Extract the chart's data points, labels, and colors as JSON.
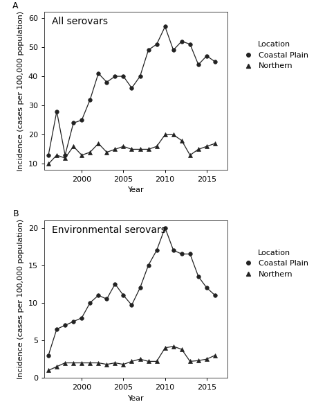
{
  "years": [
    1996,
    1997,
    1998,
    1999,
    2000,
    2001,
    2002,
    2003,
    2004,
    2005,
    2006,
    2007,
    2008,
    2009,
    2010,
    2011,
    2012,
    2013,
    2014,
    2015,
    2016
  ],
  "panel_a": {
    "title": "All serovars",
    "label": "A",
    "coastal_plain": [
      13,
      28,
      13,
      24,
      25,
      32,
      41,
      38,
      40,
      40,
      36,
      40,
      49,
      51,
      57,
      49,
      52,
      51,
      44,
      47,
      45
    ],
    "northern": [
      10,
      13,
      12,
      16,
      13,
      14,
      17,
      14,
      15,
      16,
      15,
      15,
      15,
      16,
      20,
      20,
      18,
      13,
      15,
      16,
      17
    ],
    "ylim": [
      8,
      62
    ],
    "yticks": [
      10,
      20,
      30,
      40,
      50,
      60
    ],
    "ylabel": "Incidence (cases per 100,000 population)"
  },
  "panel_b": {
    "title": "Environmental serovars",
    "label": "B",
    "coastal_plain": [
      3,
      6.5,
      7,
      7.5,
      8,
      10,
      11,
      10.5,
      12.5,
      11,
      9.7,
      12,
      15,
      17,
      20,
      17,
      16.5,
      16.5,
      13.5,
      12,
      11
    ],
    "northern": [
      1,
      1.5,
      2,
      2,
      2,
      2,
      2,
      1.8,
      2,
      1.8,
      2.2,
      2.5,
      2.2,
      2.2,
      4,
      4.2,
      3.8,
      2.2,
      2.3,
      2.5,
      3
    ],
    "ylim": [
      0,
      21
    ],
    "yticks": [
      0,
      5,
      10,
      15,
      20
    ],
    "ylabel": "Incidence (cases per 100,000 population)"
  },
  "xlabel": "Year",
  "xticks": [
    2000,
    2005,
    2010,
    2015
  ],
  "xlim": [
    1995.5,
    2017.5
  ],
  "line_color": "#222222",
  "marker_circle": "o",
  "marker_triangle": "^",
  "marker_size": 4,
  "linewidth": 0.9,
  "legend_title": "Location",
  "legend_labels": [
    "Coastal Plain",
    "Northern"
  ],
  "background_color": "#ffffff",
  "panel_label_fontsize": 9,
  "title_fontsize": 10,
  "axis_label_fontsize": 8,
  "tick_fontsize": 8,
  "legend_fontsize": 8,
  "legend_title_fontsize": 8
}
